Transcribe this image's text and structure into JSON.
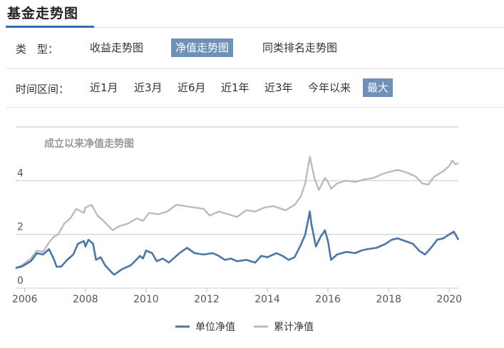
{
  "section_title": "基金走势图",
  "type_row": {
    "label": "类　型：",
    "options": [
      "收益走势图",
      "净值走势图",
      "同类排名走势图"
    ],
    "active": 1
  },
  "range_row": {
    "label": "时间区间：",
    "options": [
      "近1月",
      "近3月",
      "近6月",
      "近1年",
      "近3年",
      "今年以来",
      "最大"
    ],
    "active": 6
  },
  "colors": {
    "unit_nav": "#4a76a8",
    "cumulative_nav": "#bbbbbb",
    "active_option_bg": "#6f90b8",
    "accent": "#2f6eb5"
  },
  "chart_data": {
    "type": "line",
    "title": "成立以来净值走势图",
    "xlabel": "",
    "ylabel": "",
    "xlim": [
      2005.7,
      2020.3
    ],
    "ylim": [
      0,
      6
    ],
    "x_ticks": [
      "2006",
      "2008",
      "2010",
      "2012",
      "2014",
      "2016",
      "2018",
      "2020"
    ],
    "y_ticks": [
      "0",
      "2",
      "4"
    ],
    "grid": "horizontal",
    "legend_position": "bottom-center",
    "series": [
      {
        "name": "单位净值",
        "color": "#4a76a8",
        "points": [
          [
            2005.7,
            0.75
          ],
          [
            2005.9,
            0.8
          ],
          [
            2006.2,
            1.0
          ],
          [
            2006.4,
            1.3
          ],
          [
            2006.6,
            1.25
          ],
          [
            2006.8,
            1.45
          ],
          [
            2006.95,
            1.1
          ],
          [
            2007.05,
            0.8
          ],
          [
            2007.2,
            0.8
          ],
          [
            2007.4,
            1.05
          ],
          [
            2007.6,
            1.25
          ],
          [
            2007.75,
            1.65
          ],
          [
            2007.95,
            1.75
          ],
          [
            2008.0,
            1.55
          ],
          [
            2008.1,
            1.8
          ],
          [
            2008.25,
            1.65
          ],
          [
            2008.35,
            1.05
          ],
          [
            2008.5,
            1.15
          ],
          [
            2008.65,
            0.85
          ],
          [
            2008.85,
            0.6
          ],
          [
            2008.95,
            0.5
          ],
          [
            2009.2,
            0.7
          ],
          [
            2009.5,
            0.85
          ],
          [
            2009.8,
            1.2
          ],
          [
            2009.9,
            1.1
          ],
          [
            2010.0,
            1.4
          ],
          [
            2010.2,
            1.3
          ],
          [
            2010.35,
            1.0
          ],
          [
            2010.55,
            1.1
          ],
          [
            2010.75,
            0.95
          ],
          [
            2011.1,
            1.3
          ],
          [
            2011.35,
            1.5
          ],
          [
            2011.6,
            1.3
          ],
          [
            2011.9,
            1.25
          ],
          [
            2012.2,
            1.3
          ],
          [
            2012.4,
            1.2
          ],
          [
            2012.6,
            1.05
          ],
          [
            2012.8,
            1.1
          ],
          [
            2013.0,
            1.0
          ],
          [
            2013.3,
            1.05
          ],
          [
            2013.6,
            0.95
          ],
          [
            2013.8,
            1.2
          ],
          [
            2014.0,
            1.15
          ],
          [
            2014.3,
            1.3
          ],
          [
            2014.5,
            1.2
          ],
          [
            2014.7,
            1.05
          ],
          [
            2014.9,
            1.15
          ],
          [
            2015.1,
            1.6
          ],
          [
            2015.25,
            2.0
          ],
          [
            2015.4,
            2.85
          ],
          [
            2015.45,
            2.4
          ],
          [
            2015.6,
            1.55
          ],
          [
            2015.75,
            1.9
          ],
          [
            2015.9,
            2.15
          ],
          [
            2016.0,
            1.75
          ],
          [
            2016.1,
            1.05
          ],
          [
            2016.3,
            1.25
          ],
          [
            2016.6,
            1.35
          ],
          [
            2016.9,
            1.3
          ],
          [
            2017.1,
            1.4
          ],
          [
            2017.3,
            1.45
          ],
          [
            2017.6,
            1.5
          ],
          [
            2017.9,
            1.65
          ],
          [
            2018.1,
            1.8
          ],
          [
            2018.3,
            1.85
          ],
          [
            2018.55,
            1.75
          ],
          [
            2018.8,
            1.65
          ],
          [
            2019.0,
            1.4
          ],
          [
            2019.2,
            1.25
          ],
          [
            2019.4,
            1.5
          ],
          [
            2019.6,
            1.8
          ],
          [
            2019.8,
            1.85
          ],
          [
            2020.0,
            2.0
          ],
          [
            2020.15,
            2.1
          ],
          [
            2020.3,
            1.8
          ]
        ]
      },
      {
        "name": "累计净值",
        "color": "#bbbbbb",
        "points": [
          [
            2005.7,
            0.75
          ],
          [
            2005.9,
            0.85
          ],
          [
            2006.2,
            1.1
          ],
          [
            2006.4,
            1.4
          ],
          [
            2006.6,
            1.35
          ],
          [
            2006.8,
            1.7
          ],
          [
            2006.95,
            1.9
          ],
          [
            2007.1,
            2.0
          ],
          [
            2007.3,
            2.4
          ],
          [
            2007.5,
            2.6
          ],
          [
            2007.7,
            2.95
          ],
          [
            2007.95,
            2.8
          ],
          [
            2008.0,
            3.0
          ],
          [
            2008.2,
            3.1
          ],
          [
            2008.4,
            2.7
          ],
          [
            2008.6,
            2.5
          ],
          [
            2008.9,
            2.15
          ],
          [
            2009.1,
            2.3
          ],
          [
            2009.4,
            2.4
          ],
          [
            2009.7,
            2.6
          ],
          [
            2009.9,
            2.5
          ],
          [
            2010.1,
            2.8
          ],
          [
            2010.4,
            2.75
          ],
          [
            2010.7,
            2.85
          ],
          [
            2011.0,
            3.1
          ],
          [
            2011.3,
            3.05
          ],
          [
            2011.6,
            3.0
          ],
          [
            2011.9,
            2.95
          ],
          [
            2012.1,
            2.7
          ],
          [
            2012.4,
            2.85
          ],
          [
            2012.7,
            2.75
          ],
          [
            2013.0,
            2.65
          ],
          [
            2013.3,
            2.9
          ],
          [
            2013.6,
            2.85
          ],
          [
            2013.9,
            3.0
          ],
          [
            2014.2,
            3.05
          ],
          [
            2014.6,
            2.9
          ],
          [
            2014.9,
            3.1
          ],
          [
            2015.1,
            3.4
          ],
          [
            2015.25,
            3.9
          ],
          [
            2015.4,
            4.9
          ],
          [
            2015.55,
            4.1
          ],
          [
            2015.7,
            3.65
          ],
          [
            2015.9,
            4.1
          ],
          [
            2016.0,
            3.95
          ],
          [
            2016.1,
            3.7
          ],
          [
            2016.3,
            3.9
          ],
          [
            2016.6,
            4.0
          ],
          [
            2016.9,
            3.95
          ],
          [
            2017.2,
            4.05
          ],
          [
            2017.5,
            4.1
          ],
          [
            2017.8,
            4.25
          ],
          [
            2018.1,
            4.35
          ],
          [
            2018.3,
            4.4
          ],
          [
            2018.6,
            4.3
          ],
          [
            2018.9,
            4.15
          ],
          [
            2019.1,
            3.9
          ],
          [
            2019.3,
            3.85
          ],
          [
            2019.5,
            4.15
          ],
          [
            2019.8,
            4.35
          ],
          [
            2020.0,
            4.55
          ],
          [
            2020.1,
            4.75
          ],
          [
            2020.2,
            4.6
          ],
          [
            2020.3,
            4.65
          ]
        ]
      }
    ]
  }
}
